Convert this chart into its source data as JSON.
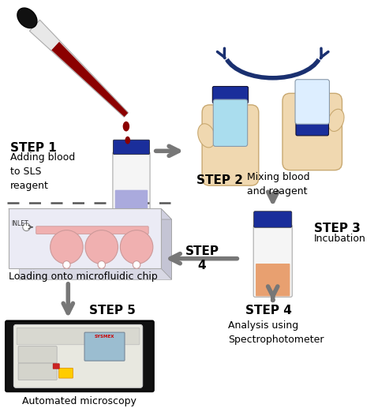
{
  "background_color": "#ffffff",
  "step1_label": "STEP 1",
  "step1_desc": "Adding blood\nto SLS\nreagent",
  "step2_label": "STEP 2",
  "step2_desc": "Mixing blood\nand reagent",
  "step3_label": "STEP 3",
  "step3_desc": "Incubation",
  "step4_left_label": "STEP\n4",
  "step4_right_label": "STEP 4",
  "step4_desc_right": "Analysis using\nSpectrophotometer",
  "step5_label": "STEP 5",
  "step5_desc": "Automated microscopy",
  "chip_label": "Loading onto microfluidic chip",
  "tube_blue_cap": "#1a2e9b",
  "tube_body_white": "#f5f5f5",
  "tube_body_blue": "#aaaadd",
  "tube_incub_orange": "#e8a070",
  "blood_red": "#8b0000",
  "arrow_color": "#777777",
  "chip_pink": "#f0b0b0",
  "chip_bg": "#e8e8f0",
  "arc_blue": "#1a3070"
}
